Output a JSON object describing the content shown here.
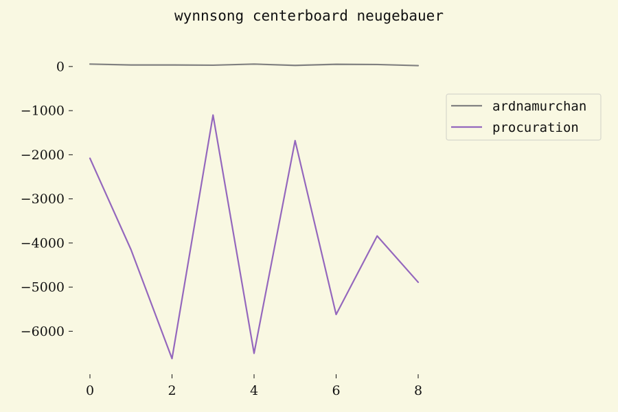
{
  "chart_data": {
    "type": "line",
    "title": "wynnsong centerboard neugebauer",
    "xlabel": "",
    "ylabel": "",
    "x": [
      0,
      1,
      2,
      3,
      4,
      5,
      6,
      7,
      8
    ],
    "series": [
      {
        "name": "ardnamurchan",
        "color": "#808080",
        "values": [
          55,
          35,
          35,
          30,
          55,
          25,
          50,
          45,
          20
        ]
      },
      {
        "name": "procuration",
        "color": "#9467bd",
        "values": [
          -2080,
          -4150,
          -6620,
          -1100,
          -6500,
          -1680,
          -5620,
          -3840,
          -4890
        ]
      }
    ],
    "xlim": [
      0,
      8
    ],
    "ylim": [
      -6850,
      200
    ],
    "x_ticks": [
      0,
      2,
      4,
      6,
      8
    ],
    "x_tick_labels": [
      "0",
      "2",
      "4",
      "6",
      "8"
    ],
    "y_ticks": [
      0,
      -1000,
      -2000,
      -3000,
      -4000,
      -5000,
      -6000
    ],
    "y_tick_labels": [
      "0",
      "−1000",
      "−2000",
      "−3000",
      "−4000",
      "−5000",
      "−6000"
    ],
    "grid": false,
    "legend_position": "upper right, outside plot area",
    "background_color": "#f9f8e2"
  }
}
